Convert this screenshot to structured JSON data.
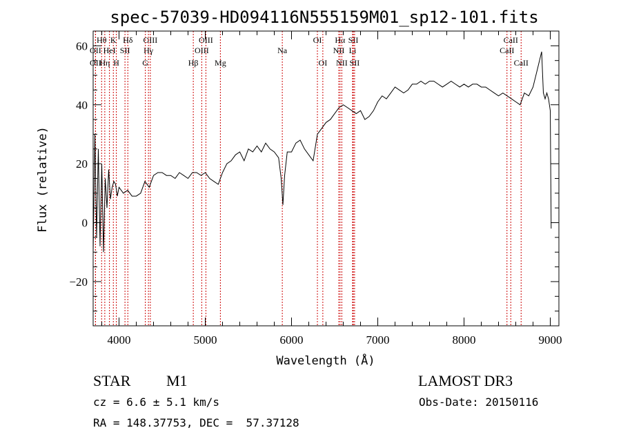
{
  "chart_data": {
    "type": "line",
    "title": "spec-57039-HD094116N555159M01_sp12-101.fits",
    "xlabel": "Wavelength (Å)",
    "ylabel": "Flux (relative)",
    "xlim": [
      3700,
      9100
    ],
    "ylim": [
      -35,
      65
    ],
    "xticks": [
      4000,
      5000,
      6000,
      7000,
      8000,
      9000
    ],
    "yticks": [
      -20,
      0,
      20,
      40,
      60
    ],
    "line_color": "#000000",
    "marker_color": "#cc0000",
    "series": [
      {
        "x": [
          3700,
          3720,
          3740,
          3760,
          3780,
          3800,
          3820,
          3840,
          3860,
          3880,
          3900,
          3920,
          3940,
          3960,
          3980,
          4000,
          4050,
          4100,
          4150,
          4200,
          4250,
          4300,
          4350,
          4400,
          4450,
          4500,
          4550,
          4600,
          4650,
          4700,
          4750,
          4800,
          4850,
          4900,
          4950,
          5000,
          5050,
          5100,
          5150,
          5200,
          5250,
          5300,
          5350,
          5400,
          5450,
          5500,
          5550,
          5600,
          5650,
          5700,
          5750,
          5800,
          5850,
          5880,
          5900,
          5920,
          5950,
          6000,
          6050,
          6100,
          6150,
          6200,
          6250,
          6300,
          6350,
          6400,
          6450,
          6500,
          6550,
          6600,
          6650,
          6700,
          6750,
          6800,
          6850,
          6900,
          6950,
          7000,
          7050,
          7100,
          7150,
          7200,
          7250,
          7300,
          7350,
          7400,
          7450,
          7500,
          7550,
          7600,
          7650,
          7700,
          7750,
          7800,
          7850,
          7900,
          7950,
          8000,
          8050,
          8100,
          8150,
          8200,
          8250,
          8300,
          8350,
          8400,
          8450,
          8500,
          8550,
          8600,
          8650,
          8700,
          8750,
          8800,
          8850,
          8900,
          8920,
          8940,
          8960,
          8980,
          9000,
          9010
        ],
        "y": [
          -10,
          30,
          -5,
          25,
          -8,
          20,
          -10,
          15,
          5,
          18,
          8,
          12,
          14,
          13,
          9,
          12,
          10,
          11,
          9,
          9,
          10,
          14,
          12,
          16,
          17,
          17,
          16,
          16,
          15,
          17,
          16,
          15,
          17,
          17,
          16,
          17,
          15,
          14,
          13,
          17,
          20,
          21,
          23,
          24,
          21,
          25,
          24,
          26,
          24,
          27,
          25,
          24,
          22,
          15,
          6,
          16,
          24,
          24,
          27,
          28,
          25,
          23,
          21,
          30,
          32,
          34,
          35,
          37,
          39,
          40,
          39,
          38,
          37,
          38,
          35,
          36,
          38,
          41,
          43,
          42,
          44,
          46,
          45,
          44,
          45,
          47,
          47,
          48,
          47,
          48,
          48,
          47,
          46,
          47,
          48,
          47,
          46,
          47,
          46,
          47,
          47,
          46,
          46,
          45,
          44,
          43,
          44,
          43,
          42,
          41,
          40,
          44,
          43,
          46,
          52,
          58,
          44,
          42,
          44,
          42,
          38,
          -2
        ]
      }
    ],
    "line_markers": [
      {
        "label": "Hθ",
        "x": 3798,
        "row": 1
      },
      {
        "label": "OII",
        "x": 3727,
        "row": 2
      },
      {
        "label": "OII",
        "x": 3727,
        "row": 3
      },
      {
        "label": "Hη",
        "x": 3835,
        "row": 3
      },
      {
        "label": "HeI",
        "x": 3889,
        "row": 2
      },
      {
        "label": "K",
        "x": 3934,
        "row": 1
      },
      {
        "label": "H",
        "x": 3969,
        "row": 3
      },
      {
        "label": "SII",
        "x": 4069,
        "row": 2
      },
      {
        "label": "Hδ",
        "x": 4102,
        "row": 1
      },
      {
        "label": "OIII",
        "x": 4363,
        "row": 1
      },
      {
        "label": "Hγ",
        "x": 4341,
        "row": 2
      },
      {
        "label": "G",
        "x": 4305,
        "row": 3
      },
      {
        "label": "Hβ",
        "x": 4861,
        "row": 3
      },
      {
        "label": "OIII",
        "x": 5007,
        "row": 1
      },
      {
        "label": "OIII",
        "x": 4959,
        "row": 2
      },
      {
        "label": "Mg",
        "x": 5175,
        "row": 3
      },
      {
        "label": "Na",
        "x": 5893,
        "row": 2
      },
      {
        "label": "OI",
        "x": 6300,
        "row": 1
      },
      {
        "label": "OI",
        "x": 6363,
        "row": 3
      },
      {
        "label": "Hα",
        "x": 6563,
        "row": 1
      },
      {
        "label": "NII",
        "x": 6548,
        "row": 2
      },
      {
        "label": "NII",
        "x": 6583,
        "row": 3
      },
      {
        "label": "SII",
        "x": 6716,
        "row": 1
      },
      {
        "label": "Li",
        "x": 6708,
        "row": 2
      },
      {
        "label": "SII",
        "x": 6731,
        "row": 3
      },
      {
        "label": "CaII",
        "x": 8542,
        "row": 1
      },
      {
        "label": "CaII",
        "x": 8498,
        "row": 2
      },
      {
        "label": "CaII",
        "x": 8662,
        "row": 3
      }
    ]
  },
  "info": {
    "object_class": "STAR",
    "subclass": "M1",
    "survey": "LAMOST DR3",
    "cz": "cz = 6.6 ± 5.1 km/s",
    "obs_date": "Obs-Date: 20150116",
    "coords": "RA = 148.37753, DEC =  57.37128"
  }
}
